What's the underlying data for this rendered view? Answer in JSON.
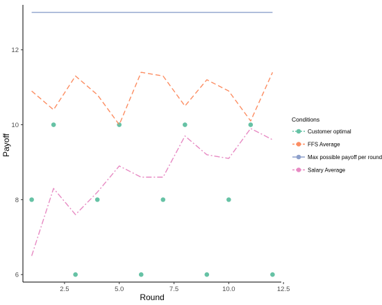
{
  "chart_data": {
    "type": "line",
    "xlabel": "Round",
    "ylabel": "Payoff",
    "xlim": [
      0.6,
      12.4
    ],
    "ylim": [
      5.8,
      13.2
    ],
    "x_ticks": [
      2.5,
      5.0,
      7.5,
      10.0,
      12.5
    ],
    "x_tick_labels": [
      "2.5",
      "5.0",
      "7.5",
      "10.0",
      "12.5"
    ],
    "y_ticks": [
      6,
      8,
      10,
      12
    ],
    "y_tick_labels": [
      "6",
      "8",
      "10",
      "12"
    ],
    "grid": false,
    "legend": {
      "title": "Conditions",
      "position": "right"
    },
    "series": [
      {
        "name": "Customer optimal",
        "style": "points",
        "color": "#66c2a5",
        "x": [
          1,
          2,
          3,
          4,
          5,
          6,
          7,
          8,
          9,
          10,
          11,
          12
        ],
        "y": [
          8,
          10,
          6,
          8,
          10,
          6,
          8,
          10,
          6,
          8,
          10,
          6
        ]
      },
      {
        "name": "FFS Average",
        "style": "dashed",
        "color": "#fc8d62",
        "x": [
          1,
          2,
          3,
          4,
          5,
          6,
          7,
          8,
          9,
          10,
          11,
          12
        ],
        "y": [
          10.9,
          10.4,
          11.3,
          10.8,
          10.0,
          11.4,
          11.3,
          10.5,
          11.2,
          10.9,
          10.1,
          11.4
        ]
      },
      {
        "name": "Max possible payoff per round",
        "style": "solid",
        "color": "#8da0cb",
        "x": [
          1,
          2,
          3,
          4,
          5,
          6,
          7,
          8,
          9,
          10,
          11,
          12
        ],
        "y": [
          13,
          13,
          13,
          13,
          13,
          13,
          13,
          13,
          13,
          13,
          13,
          13
        ]
      },
      {
        "name": "Salary Average",
        "style": "dashdot",
        "color": "#e78ac3",
        "x": [
          1,
          2,
          3,
          4,
          5,
          6,
          7,
          8,
          9,
          10,
          11,
          12
        ],
        "y": [
          6.5,
          8.3,
          7.6,
          8.2,
          8.9,
          8.6,
          8.6,
          9.7,
          9.2,
          9.1,
          9.9,
          9.6
        ]
      }
    ]
  }
}
